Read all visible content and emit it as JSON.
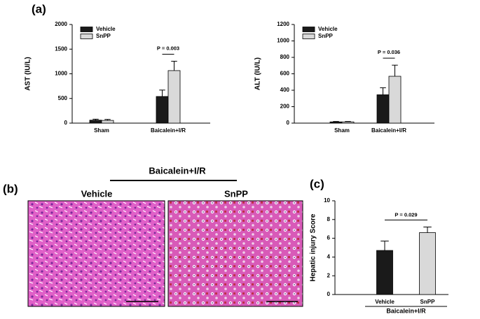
{
  "figure": {
    "panel_labels": [
      "(a)",
      "(b)",
      "(c)"
    ],
    "histology": {
      "group": "Baicalein+I/R",
      "labels": [
        "Vehicle",
        "SnPP"
      ]
    }
  },
  "chart_data": [
    {
      "type": "bar",
      "ylabel": "AST (IU/L)",
      "categories": [
        "Sham",
        "Baicalein+I/R"
      ],
      "ylim": [
        0,
        2000
      ],
      "yticks": [
        0,
        500,
        1000,
        1500,
        2000
      ],
      "annotation": "P = 0.003",
      "series": [
        {
          "name": "Vehicle",
          "color": "#1a1a1a",
          "values": [
            60,
            540
          ],
          "errors": [
            20,
            130
          ]
        },
        {
          "name": "SnPP",
          "color": "#d9d9d9",
          "values": [
            55,
            1065
          ],
          "errors": [
            20,
            190
          ]
        }
      ]
    },
    {
      "type": "bar",
      "ylabel": "ALT (IU/L)",
      "categories": [
        "Sham",
        "Baicalein+I/R"
      ],
      "ylim": [
        0,
        1200
      ],
      "yticks": [
        0,
        200,
        400,
        600,
        800,
        1000,
        1200
      ],
      "annotation": "P = 0.036",
      "series": [
        {
          "name": "Vehicle",
          "color": "#1a1a1a",
          "values": [
            15,
            345
          ],
          "errors": [
            5,
            85
          ]
        },
        {
          "name": "SnPP",
          "color": "#d9d9d9",
          "values": [
            15,
            570
          ],
          "errors": [
            5,
            135
          ]
        }
      ]
    },
    {
      "type": "bar",
      "ylabel": "Hepatic injury Score",
      "xlabel": "Baicalein+I/R",
      "categories": [
        "Vehicle",
        "SnPP"
      ],
      "ylim": [
        0,
        10
      ],
      "yticks": [
        0,
        2,
        4,
        6,
        8,
        10
      ],
      "annotation": "P = 0.029",
      "values": [
        4.7,
        6.6
      ],
      "errors": [
        1.0,
        0.6
      ],
      "colors": [
        "#1a1a1a",
        "#d9d9d9"
      ]
    }
  ]
}
